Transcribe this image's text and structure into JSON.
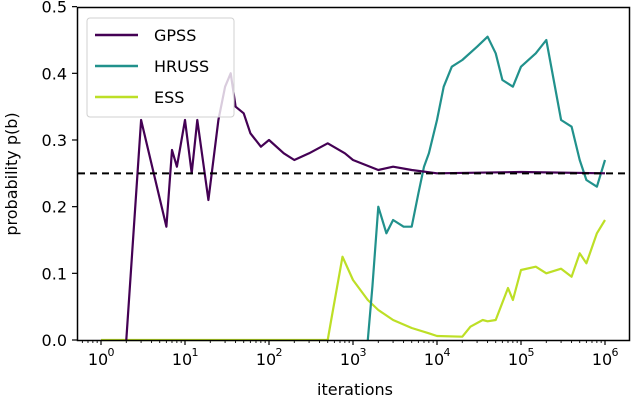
{
  "chart_data": {
    "type": "line",
    "title": "",
    "xlabel": "iterations",
    "ylabel": "probability p(b)",
    "xscale": "log",
    "xlim": [
      0.45,
      1500000
    ],
    "ylim": [
      0.0,
      0.5
    ],
    "x_ticks": [
      "10^0",
      "10^1",
      "10^2",
      "10^3",
      "10^4",
      "10^5",
      "10^6"
    ],
    "y_ticks": [
      "0.0",
      "0.1",
      "0.2",
      "0.3",
      "0.4",
      "0.5"
    ],
    "grid": false,
    "legend_position": "upper left",
    "reference_line": {
      "y": 0.25,
      "style": "dashed",
      "color": "#000000"
    },
    "series": [
      {
        "name": "GPSS",
        "color": "#440154",
        "x": [
          2,
          3,
          6,
          7,
          8,
          10,
          12,
          14,
          19,
          25,
          30,
          35,
          40,
          50,
          60,
          80,
          100,
          150,
          200,
          300,
          500,
          800,
          1000,
          2000,
          3000,
          5000,
          10000,
          100000,
          1000000
        ],
        "y": [
          0.0,
          0.33,
          0.17,
          0.285,
          0.26,
          0.33,
          0.25,
          0.33,
          0.21,
          0.33,
          0.38,
          0.4,
          0.35,
          0.34,
          0.31,
          0.29,
          0.3,
          0.28,
          0.27,
          0.28,
          0.295,
          0.28,
          0.27,
          0.255,
          0.26,
          0.255,
          0.25,
          0.252,
          0.25
        ]
      },
      {
        "name": "HRUSS",
        "color": "#21918c",
        "x": [
          1500,
          1700,
          2000,
          2500,
          3000,
          4000,
          5000,
          6000,
          7000,
          8000,
          10000,
          12000,
          15000,
          20000,
          30000,
          40000,
          50000,
          60000,
          80000,
          100000,
          150000,
          200000,
          300000,
          400000,
          500000,
          600000,
          800000,
          1000000
        ],
        "y": [
          0.0,
          0.08,
          0.2,
          0.16,
          0.18,
          0.17,
          0.17,
          0.22,
          0.26,
          0.28,
          0.33,
          0.38,
          0.41,
          0.42,
          0.44,
          0.455,
          0.43,
          0.39,
          0.38,
          0.41,
          0.43,
          0.45,
          0.33,
          0.32,
          0.27,
          0.24,
          0.23,
          0.27
        ]
      },
      {
        "name": "ESS",
        "color": "#bddf26",
        "x": [
          1,
          500,
          550,
          750,
          1000,
          1500,
          2000,
          3000,
          5000,
          8000,
          10000,
          20000,
          25000,
          35000,
          40000,
          50000,
          70000,
          80000,
          100000,
          150000,
          200000,
          300000,
          400000,
          500000,
          600000,
          800000,
          1000000
        ],
        "y": [
          0.0,
          0.0,
          0.03,
          0.125,
          0.09,
          0.06,
          0.045,
          0.03,
          0.018,
          0.01,
          0.006,
          0.005,
          0.02,
          0.03,
          0.028,
          0.03,
          0.078,
          0.06,
          0.105,
          0.11,
          0.1,
          0.107,
          0.095,
          0.13,
          0.115,
          0.16,
          0.18
        ]
      }
    ]
  }
}
